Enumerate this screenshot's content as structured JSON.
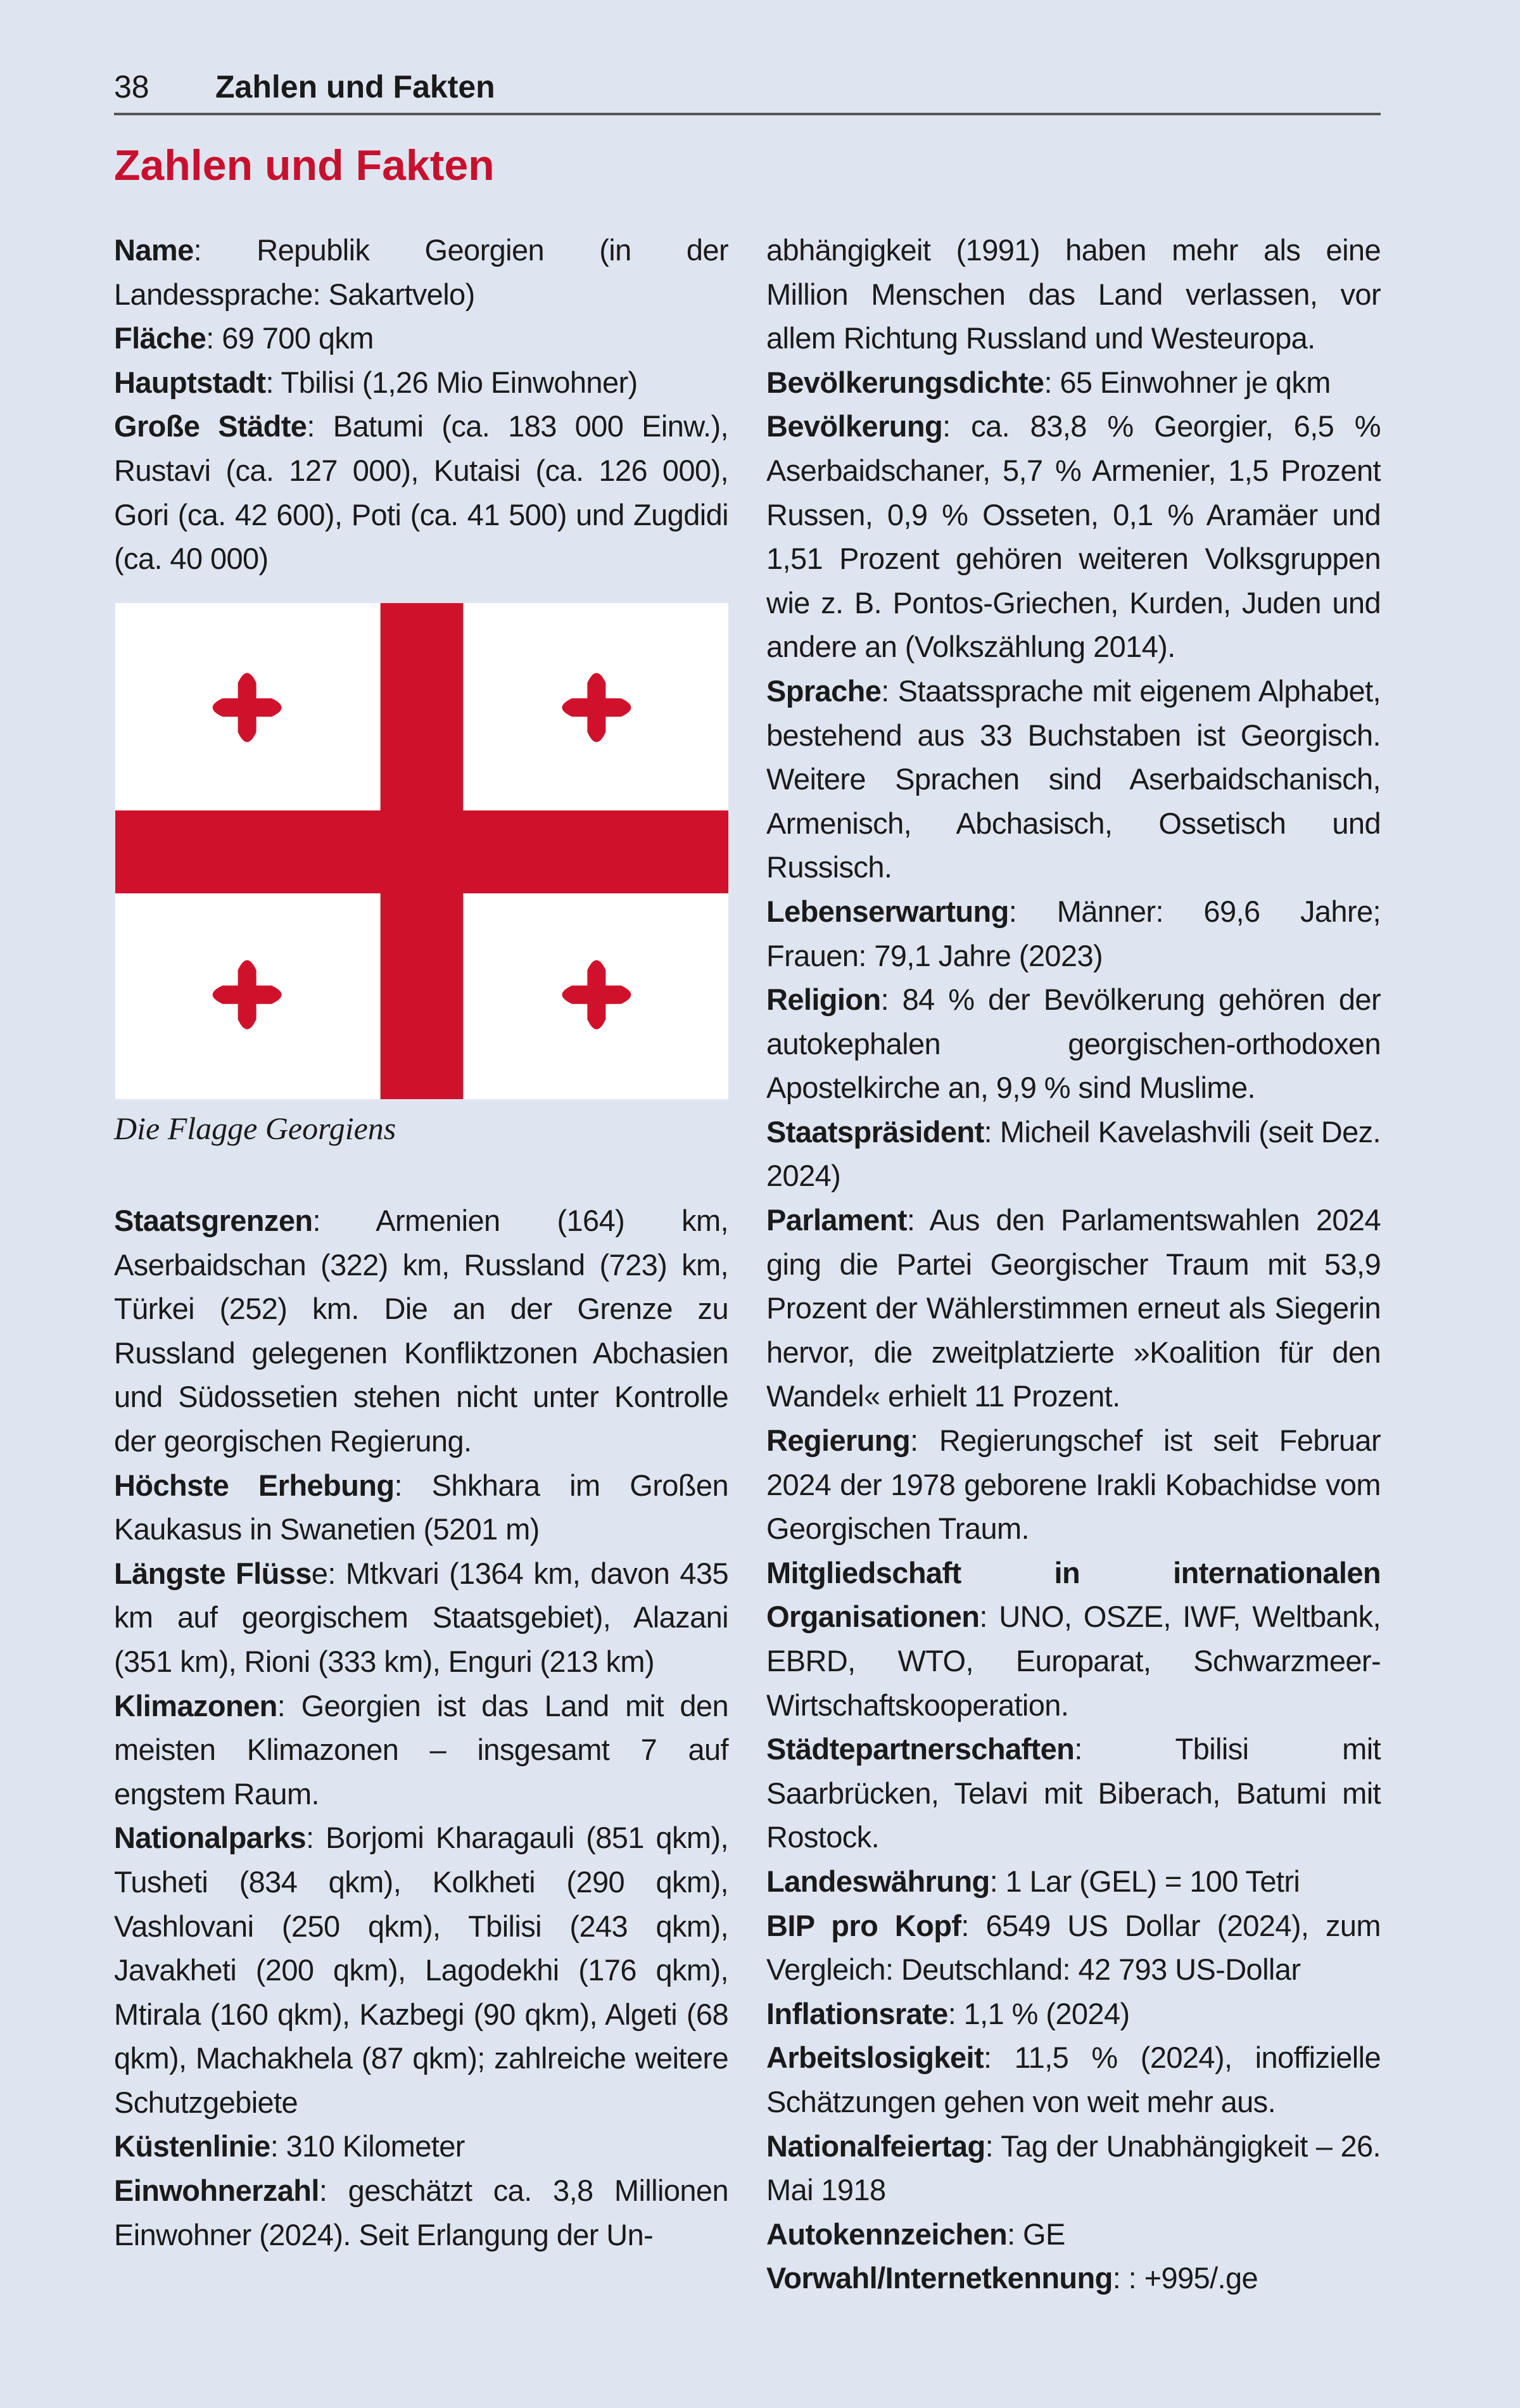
{
  "header": {
    "page_number": "38",
    "section": "Zahlen und Fakten"
  },
  "title": "Zahlen und Fakten",
  "colors": {
    "accent": "#c8102e",
    "background": "#dfe5f0",
    "flag_red": "#d0112b",
    "flag_white": "#ffffff"
  },
  "left_top": [
    {
      "label": "Name",
      "text": ": Republik Georgien (in der Landessprache: Sakartvelo)"
    },
    {
      "label": "Fläche",
      "text": ": 69 700 qkm"
    },
    {
      "label": "Hauptstadt",
      "text": ": Tbilisi (1,26 Mio Einwohner)"
    },
    {
      "label": "Große Städte",
      "text": ": Batumi (ca. 183 000 Einw.), Rustavi (ca. 127 000), Kutaisi (ca. 126 000), Gori (ca. 42 600), Poti (ca. 41 500) und Zugdidi (ca. 40 000)"
    }
  ],
  "flag": {
    "caption": "Die Flagge Georgiens"
  },
  "left_bottom": [
    {
      "label": "Staatsgrenzen",
      "text": ": Armenien (164) km, Aserbaidschan (322) km, Russland (723) km, Türkei (252) km. Die an der Grenze zu Russland gelegenen Konfliktzonen Abchasien und Südossetien stehen nicht unter Kontrolle der georgischen Regierung."
    },
    {
      "label": "Höchste Erhebung",
      "text": ": Shkhara im Großen Kaukasus in Swanetien (5201 m)"
    },
    {
      "label": "Längste Flüss",
      "text": "e: Mtkvari (1364 km, davon 435 km auf georgischem Staatsgebiet), Alazani (351 km), Rioni (333 km), Enguri (213 km)"
    },
    {
      "label": "Klimazonen",
      "text": ": Georgien ist das Land mit den meisten Klimazonen – insgesamt 7 auf engstem Raum."
    },
    {
      "label": "Nationalparks",
      "text": ": Borjomi Kharagauli (851 qkm), Tusheti (834 qkm), Kolkheti (290 qkm), Vashlovani (250 qkm), Tbilisi (243 qkm), Javakheti (200 qkm), Lagodekhi (176 qkm), Mtirala (160 qkm), Kazbegi (90 qkm), Algeti (68 qkm), Machakhela (87 qkm); zahlreiche weitere Schutzgebiete"
    },
    {
      "label": "Küstenlinie",
      "text": ": 310 Kilometer"
    },
    {
      "label": "Einwohnerzahl",
      "text": ": geschätzt ca. 3,8 Millionen Einwohner (2024). Seit Erlangung der Un-"
    }
  ],
  "right": [
    {
      "label": "",
      "text": "abhängigkeit (1991) haben mehr als eine Million Menschen das Land verlassen, vor allem Richtung Russland und Westeuropa."
    },
    {
      "label": "Bevölkerungsdichte",
      "text": ": 65 Einwohner je qkm"
    },
    {
      "label": "Bevölkerung",
      "text": ": ca. 83,8 % Georgier, 6,5 % Aserbaidschaner, 5,7 % Armenier, 1,5 Prozent Russen, 0,9 % Osseten, 0,1 % Aramäer und 1,51 Prozent gehören weiteren Volksgruppen wie z. B. Pontos-Griechen, Kurden, Juden und andere an (Volkszählung 2014)."
    },
    {
      "label": "Sprache",
      "text": ": Staatssprache mit eigenem Alphabet, bestehend aus 33 Buchstaben ist Georgisch. Weitere Sprachen sind Aserbaidschanisch, Armenisch, Abchasisch, Ossetisch und Russisch."
    },
    {
      "label": "Lebenserwartung",
      "text": ": Männer: 69,6 Jahre; Frauen: 79,1 Jahre (2023)"
    },
    {
      "label": "Religion",
      "text": ": 84 % der Bevölkerung gehören der autokephalen georgischen-orthodoxen Apostelkirche an, 9,9 % sind Muslime."
    },
    {
      "label": "Staatspräsident",
      "text": ": Micheil Kavelashvili (seit Dez. 2024)"
    },
    {
      "label": "Parlament",
      "text": ": Aus den Parlamentswahlen 2024 ging die Partei Georgischer Traum mit 53,9 Prozent der Wählerstimmen erneut als Siegerin hervor, die zweitplatzierte »Koalition für den Wandel« erhielt 11 Prozent."
    },
    {
      "label": "Regierung",
      "text": ": Regierungschef ist seit Februar 2024 der 1978 geborene Irakli Kobachidse vom Georgischen Traum."
    },
    {
      "label": "Mitgliedschaft in internationalen Organisationen",
      "text": ": UNO, OSZE, IWF, Weltbank, EBRD, WTO, Europarat, Schwarzmeer-Wirtschaftskooperation."
    },
    {
      "label": "Städtepartnerschaften",
      "text": ": Tbilisi mit Saarbrücken, Telavi mit Biberach, Batumi mit Rostock."
    },
    {
      "label": "Landeswährung",
      "text": ": 1 Lar (GEL) = 100 Tetri"
    },
    {
      "label": "BIP pro Kopf",
      "text": ": 6549 US Dollar (2024), zum Vergleich: Deutschland: 42 793 US-Dollar"
    },
    {
      "label": "Inflationsrate",
      "text": ": 1,1 % (2024)"
    },
    {
      "label": "Arbeitslosigkeit",
      "text": ": 11,5 % (2024), inoffizielle Schätzungen gehen von weit mehr aus."
    },
    {
      "label": "Nationalfeiertag",
      "text": ": Tag der Unabhängigkeit – 26. Mai 1918"
    },
    {
      "label": "Autokennzeichen",
      "text": ": GE"
    },
    {
      "label": "Vorwahl/Internetkennung",
      "text": ": : +995/.ge"
    }
  ]
}
